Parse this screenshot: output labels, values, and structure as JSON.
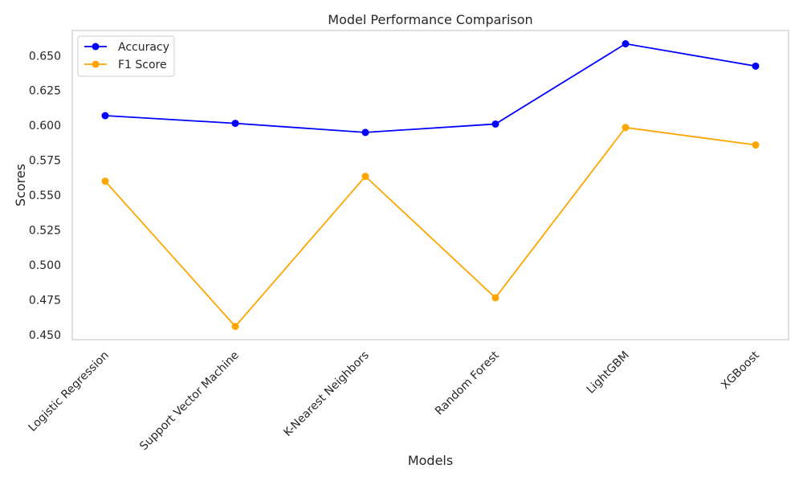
{
  "chart_data": {
    "type": "line",
    "title": "Model Performance Comparison",
    "xlabel": "Models",
    "ylabel": "Scores",
    "categories": [
      "Logistic Regression",
      "Support Vector Machine",
      "K-Nearest Neighbors",
      "Random Forest",
      "LightGBM",
      "XGBoost"
    ],
    "series": [
      {
        "name": "Accuracy",
        "color": "#0000ff",
        "values": [
          0.607,
          0.6015,
          0.595,
          0.601,
          0.6585,
          0.6425
        ]
      },
      {
        "name": "F1 Score",
        "color": "#ffa500",
        "values": [
          0.56,
          0.456,
          0.5635,
          0.4765,
          0.5985,
          0.586
        ]
      }
    ],
    "yticks": [
      "0.450",
      "0.475",
      "0.500",
      "0.525",
      "0.550",
      "0.575",
      "0.600",
      "0.625",
      "0.650"
    ],
    "ylim": [
      0.4465,
      0.668
    ],
    "grid": false,
    "legend_position": "top-left",
    "marker": "circle"
  }
}
